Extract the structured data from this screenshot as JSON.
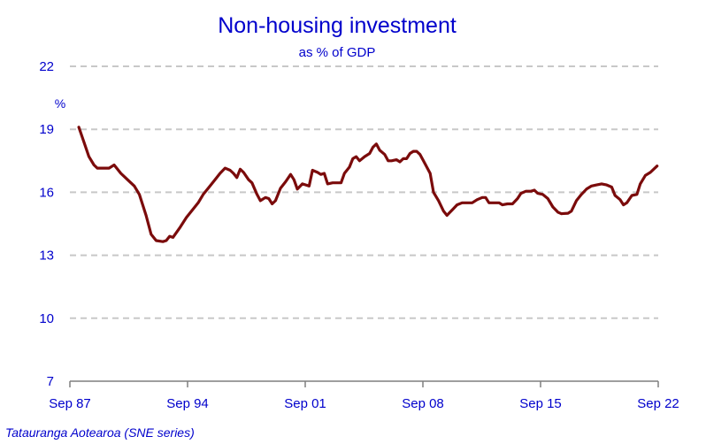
{
  "chart_data": {
    "type": "line",
    "title": "Non-housing investment",
    "subtitle": "as % of GDP",
    "ylabel": "%",
    "source": "Tatauranga Aotearoa (SNE series)",
    "ylim": [
      7,
      22
    ],
    "yticks": [
      7,
      10,
      13,
      16,
      19,
      22
    ],
    "xlim": [
      1987.67,
      2022.67
    ],
    "xticks": [
      {
        "label": "Sep 87",
        "value": 1987.67
      },
      {
        "label": "Sep 94",
        "value": 1994.67
      },
      {
        "label": "Sep 01",
        "value": 2001.67
      },
      {
        "label": "Sep 08",
        "value": 2008.67
      },
      {
        "label": "Sep 15",
        "value": 2015.67
      },
      {
        "label": "Sep 22",
        "value": 2022.67
      }
    ],
    "grid": "horizontal dashed",
    "line_color": "#7b0b0b",
    "series": [
      {
        "name": "",
        "points": [
          [
            1988.2,
            19.1
          ],
          [
            1988.5,
            18.4
          ],
          [
            1988.8,
            17.7
          ],
          [
            1989.1,
            17.3
          ],
          [
            1989.3,
            17.15
          ],
          [
            1989.7,
            17.15
          ],
          [
            1990.0,
            17.15
          ],
          [
            1990.3,
            17.3
          ],
          [
            1990.7,
            16.9
          ],
          [
            1991.1,
            16.6
          ],
          [
            1991.5,
            16.3
          ],
          [
            1991.8,
            15.9
          ],
          [
            1992.2,
            14.9
          ],
          [
            1992.5,
            14.0
          ],
          [
            1992.8,
            13.7
          ],
          [
            1993.2,
            13.65
          ],
          [
            1993.4,
            13.7
          ],
          [
            1993.6,
            13.9
          ],
          [
            1993.8,
            13.85
          ],
          [
            1994.2,
            14.3
          ],
          [
            1994.6,
            14.8
          ],
          [
            1995.0,
            15.2
          ],
          [
            1995.3,
            15.5
          ],
          [
            1995.6,
            15.9
          ],
          [
            1995.9,
            16.2
          ],
          [
            1996.3,
            16.6
          ],
          [
            1996.6,
            16.9
          ],
          [
            1996.9,
            17.15
          ],
          [
            1997.2,
            17.05
          ],
          [
            1997.4,
            16.9
          ],
          [
            1997.6,
            16.7
          ],
          [
            1997.8,
            17.1
          ],
          [
            1998.0,
            16.95
          ],
          [
            1998.3,
            16.6
          ],
          [
            1998.5,
            16.45
          ],
          [
            1998.8,
            15.9
          ],
          [
            1999.0,
            15.6
          ],
          [
            1999.3,
            15.75
          ],
          [
            1999.5,
            15.7
          ],
          [
            1999.7,
            15.45
          ],
          [
            1999.9,
            15.6
          ],
          [
            2000.2,
            16.2
          ],
          [
            2000.5,
            16.5
          ],
          [
            2000.8,
            16.85
          ],
          [
            2001.0,
            16.6
          ],
          [
            2001.2,
            16.15
          ],
          [
            2001.5,
            16.4
          ],
          [
            2001.9,
            16.3
          ],
          [
            2002.1,
            17.05
          ],
          [
            2002.4,
            16.95
          ],
          [
            2002.6,
            16.85
          ],
          [
            2002.8,
            16.9
          ],
          [
            2003.0,
            16.4
          ],
          [
            2003.3,
            16.45
          ],
          [
            2003.6,
            16.45
          ],
          [
            2003.8,
            16.45
          ],
          [
            2004.0,
            16.9
          ],
          [
            2004.3,
            17.2
          ],
          [
            2004.5,
            17.6
          ],
          [
            2004.7,
            17.7
          ],
          [
            2004.9,
            17.5
          ],
          [
            2005.2,
            17.7
          ],
          [
            2005.5,
            17.85
          ],
          [
            2005.7,
            18.15
          ],
          [
            2005.9,
            18.3
          ],
          [
            2006.1,
            18.0
          ],
          [
            2006.4,
            17.8
          ],
          [
            2006.6,
            17.5
          ],
          [
            2006.8,
            17.5
          ],
          [
            2007.1,
            17.55
          ],
          [
            2007.3,
            17.45
          ],
          [
            2007.5,
            17.6
          ],
          [
            2007.7,
            17.6
          ],
          [
            2007.9,
            17.85
          ],
          [
            2008.1,
            17.95
          ],
          [
            2008.3,
            17.95
          ],
          [
            2008.5,
            17.8
          ],
          [
            2008.7,
            17.5
          ],
          [
            2009.1,
            16.9
          ],
          [
            2009.3,
            16.0
          ],
          [
            2009.6,
            15.6
          ],
          [
            2009.9,
            15.1
          ],
          [
            2010.1,
            14.9
          ],
          [
            2010.4,
            15.15
          ],
          [
            2010.7,
            15.4
          ],
          [
            2011.0,
            15.5
          ],
          [
            2011.3,
            15.5
          ],
          [
            2011.6,
            15.5
          ],
          [
            2011.9,
            15.65
          ],
          [
            2012.2,
            15.75
          ],
          [
            2012.4,
            15.75
          ],
          [
            2012.6,
            15.5
          ],
          [
            2012.9,
            15.5
          ],
          [
            2013.2,
            15.5
          ],
          [
            2013.4,
            15.4
          ],
          [
            2013.7,
            15.45
          ],
          [
            2014.0,
            15.45
          ],
          [
            2014.3,
            15.7
          ],
          [
            2014.5,
            15.95
          ],
          [
            2014.8,
            16.05
          ],
          [
            2015.1,
            16.05
          ],
          [
            2015.3,
            16.1
          ],
          [
            2015.5,
            15.95
          ],
          [
            2015.8,
            15.9
          ],
          [
            2016.1,
            15.7
          ],
          [
            2016.4,
            15.3
          ],
          [
            2016.7,
            15.05
          ],
          [
            2016.9,
            14.98
          ],
          [
            2017.3,
            15.0
          ],
          [
            2017.5,
            15.1
          ],
          [
            2017.8,
            15.6
          ],
          [
            2018.1,
            15.9
          ],
          [
            2018.4,
            16.15
          ],
          [
            2018.7,
            16.3
          ],
          [
            2019.0,
            16.35
          ],
          [
            2019.3,
            16.4
          ],
          [
            2019.6,
            16.35
          ],
          [
            2019.9,
            16.25
          ],
          [
            2020.1,
            15.85
          ],
          [
            2020.4,
            15.65
          ],
          [
            2020.6,
            15.4
          ],
          [
            2020.8,
            15.5
          ],
          [
            2021.1,
            15.85
          ],
          [
            2021.4,
            15.9
          ],
          [
            2021.6,
            16.4
          ],
          [
            2021.9,
            16.8
          ],
          [
            2022.2,
            16.95
          ],
          [
            2022.6,
            17.25
          ]
        ]
      }
    ]
  }
}
